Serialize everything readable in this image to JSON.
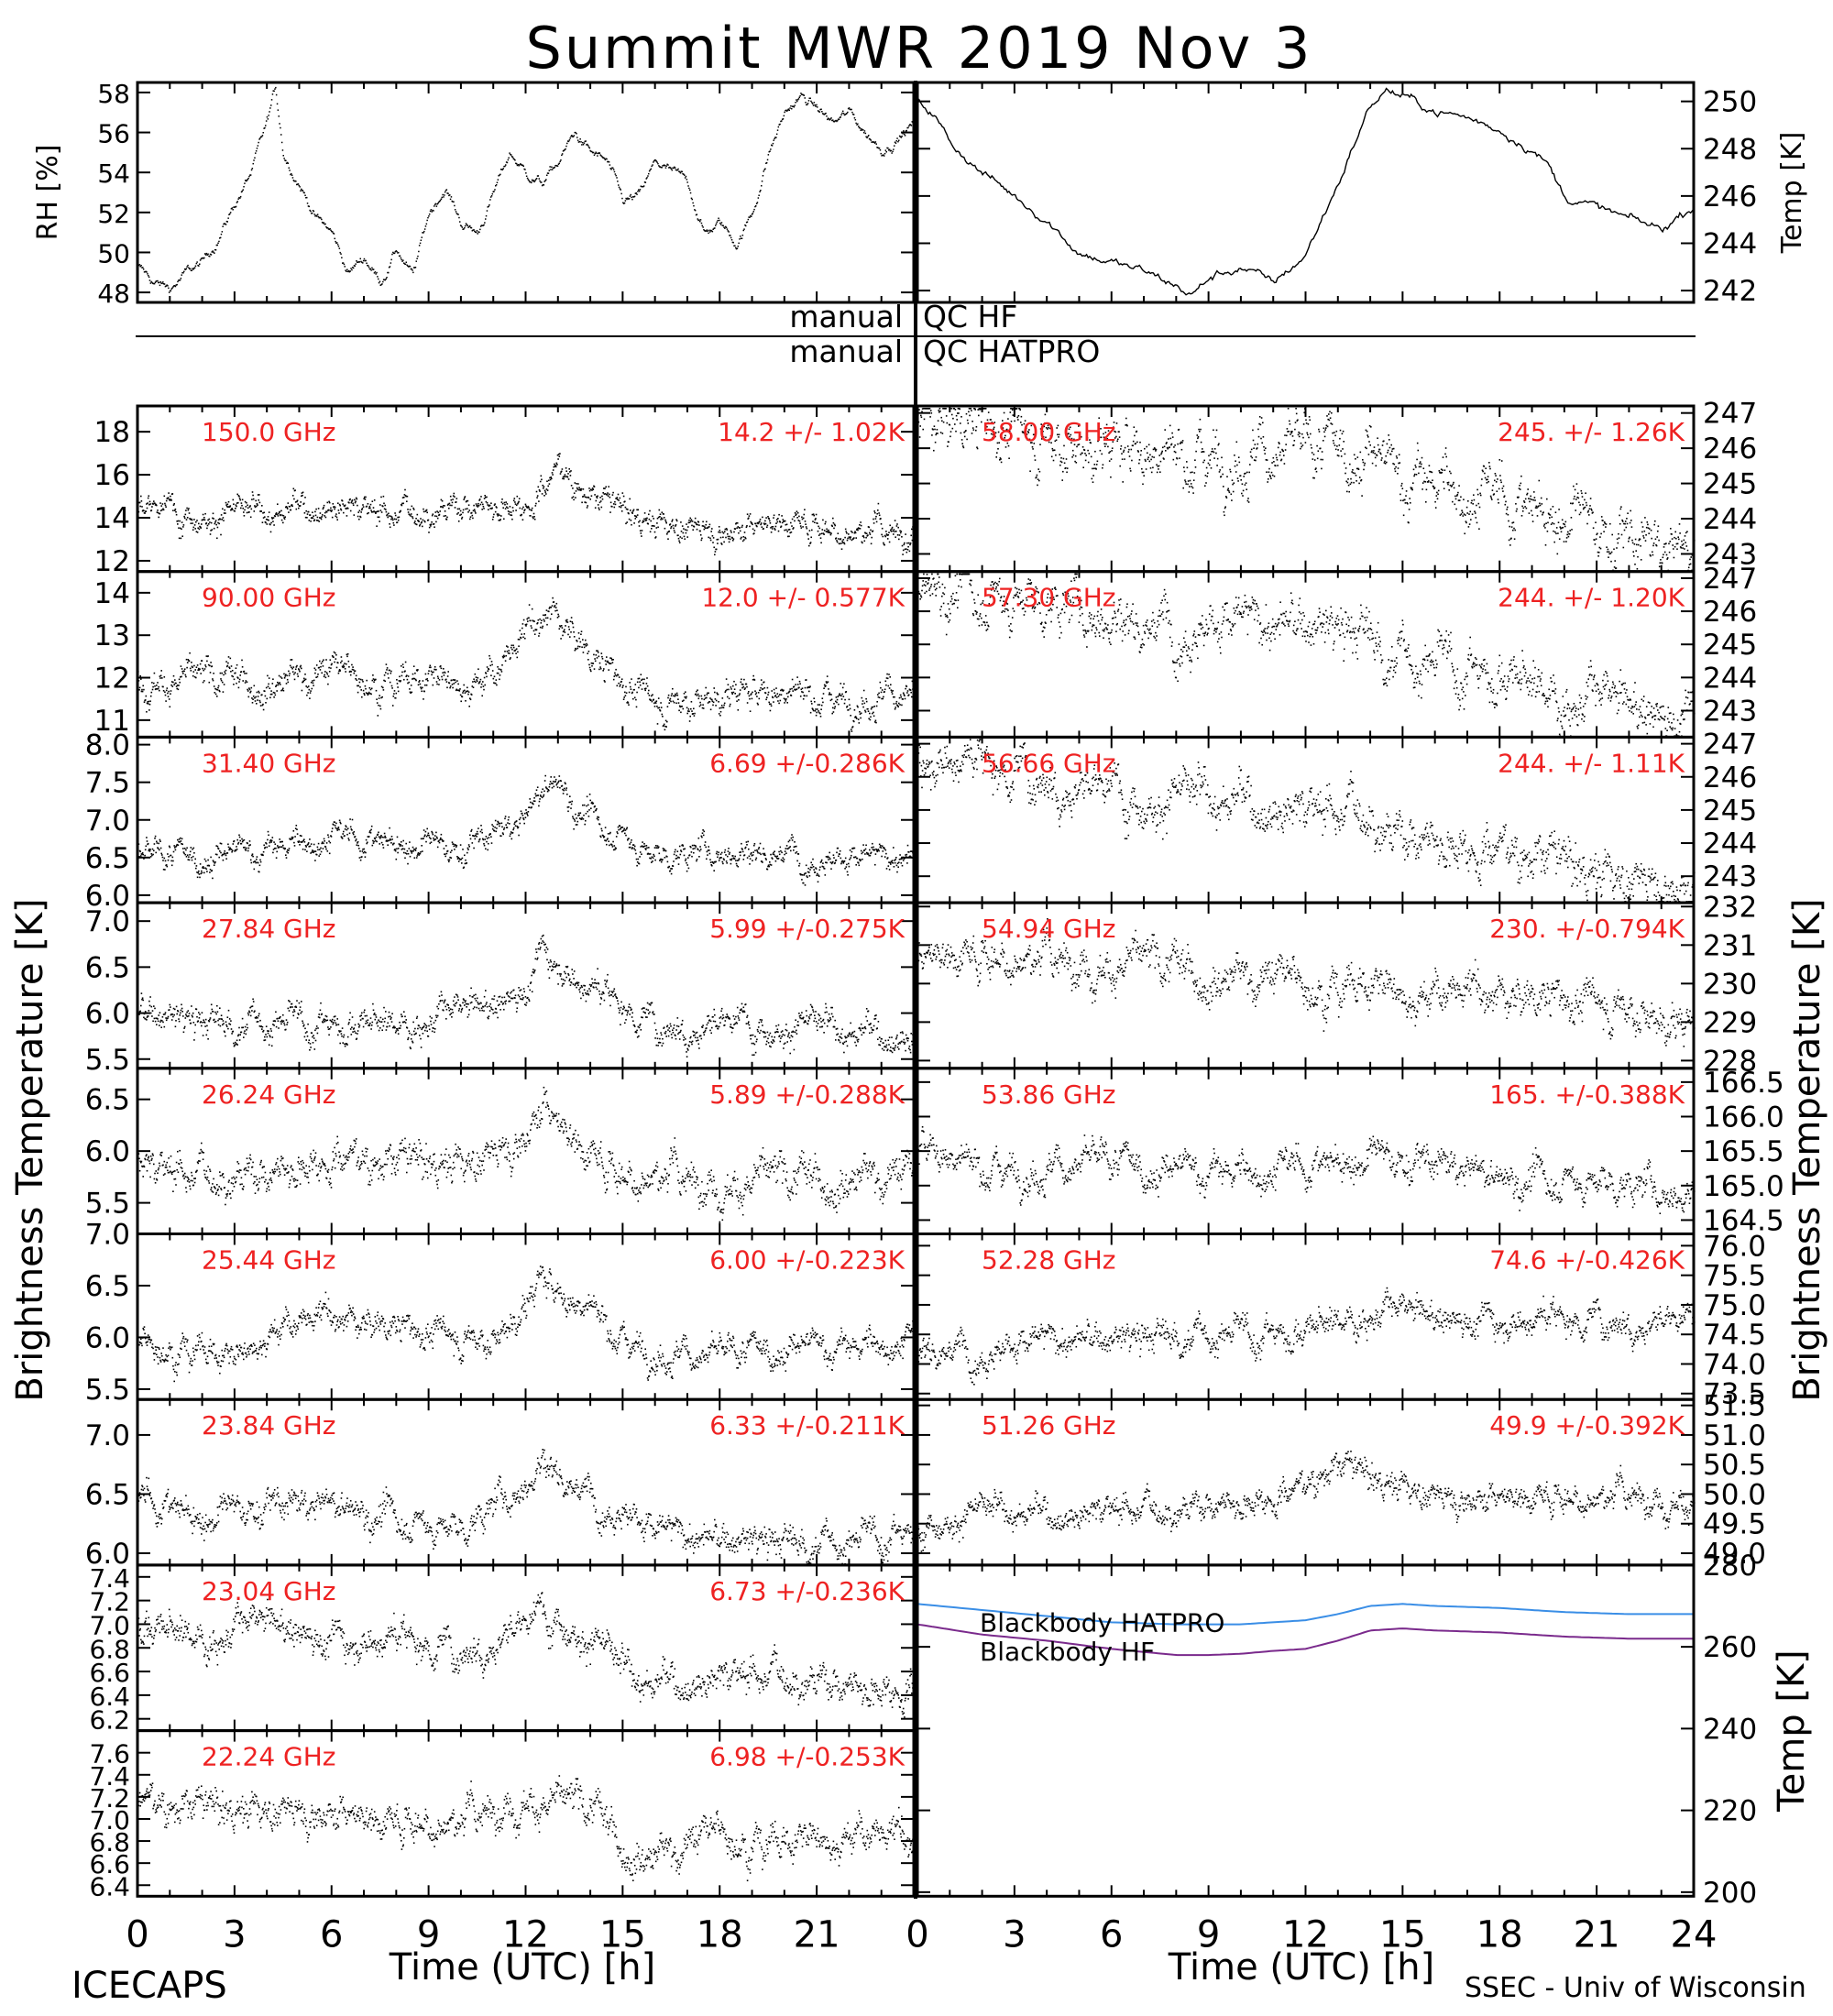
{
  "title": "Summit MWR 2019 Nov  3",
  "footer": {
    "left": "ICECAPS",
    "right": "SSEC - Univ of Wisconsin",
    "xlabel": "Time (UTC) [h]"
  },
  "qc_labels": {
    "manual_1": "manual",
    "qc_1": "QC HF",
    "manual_2": "manual",
    "qc_2": "QC HATPRO"
  },
  "colors": {
    "annotation": "#ee2222",
    "hatpro": "#3a8ee6",
    "hf": "#7a2a8c",
    "data": "#000000"
  },
  "chart_data": [
    {
      "id": "rh",
      "type": "scatter",
      "ylabel": "RH [%]",
      "ylim": [
        47.5,
        58.5
      ],
      "yticks": [
        48,
        50,
        52,
        54,
        56,
        58
      ],
      "x": [
        0,
        0.5,
        1,
        1.5,
        2,
        2.5,
        3,
        3.5,
        4,
        4.25,
        4.5,
        5,
        5.5,
        6,
        6.5,
        7,
        7.5,
        8,
        8.5,
        9,
        9.5,
        10,
        10.5,
        11,
        11.5,
        12,
        12.5,
        13,
        13.5,
        14,
        14.5,
        15,
        15.5,
        16,
        16.5,
        17,
        17.5,
        18,
        18.5,
        19,
        19.5,
        20,
        20.5,
        21,
        21.5,
        22,
        22.5,
        23,
        23.5,
        24
      ],
      "values": [
        49.3,
        48.5,
        48.2,
        49,
        49.5,
        50.8,
        52.5,
        54,
        56.5,
        58.2,
        55,
        53.5,
        51.8,
        51,
        49,
        49.8,
        48.6,
        50.2,
        48.8,
        52,
        53.3,
        51.5,
        51,
        53,
        55,
        54,
        53.5,
        54.5,
        56,
        55,
        54.5,
        52.5,
        52.8,
        54.5,
        54,
        53.5,
        51,
        51.5,
        50.5,
        52,
        55,
        57,
        57.8,
        57.2,
        56.5,
        57,
        56,
        55.2,
        55.8,
        56.5
      ]
    },
    {
      "id": "temp",
      "type": "line",
      "ylabel": "Temp [K]",
      "ylim": [
        241.5,
        250.8
      ],
      "yticks": [
        242,
        244,
        246,
        248,
        250
      ],
      "x": [
        0,
        0.5,
        1,
        2,
        3,
        4,
        5,
        6,
        7,
        8,
        8.5,
        9,
        10,
        11,
        12,
        13,
        13.5,
        14,
        14.5,
        15,
        16,
        17,
        18,
        19,
        19.5,
        20,
        21,
        22,
        23,
        24
      ],
      "values": [
        250,
        249.5,
        248.3,
        247,
        246,
        245,
        243.6,
        243.2,
        242.8,
        242.2,
        241.8,
        242.5,
        243,
        242.3,
        243.5,
        246.5,
        248.2,
        249.8,
        250.5,
        250.2,
        249.6,
        249.3,
        248.8,
        248,
        247.3,
        246,
        245.5,
        245,
        244.6,
        245.6
      ]
    },
    {
      "id": "tb150",
      "type": "scatter",
      "annotation": "150.0 GHz",
      "stat": "14.2 +/-  1.02K",
      "ylim": [
        11.5,
        19.2
      ],
      "yticks": [
        12,
        14,
        16,
        18
      ],
      "x": [
        0,
        2,
        4,
        6,
        8,
        10,
        12,
        12.5,
        13,
        14,
        16,
        18,
        20,
        22,
        24
      ],
      "values": [
        14.5,
        14.3,
        14.2,
        14.8,
        14.3,
        14.6,
        14.8,
        15.5,
        16.5,
        15,
        13.8,
        13.5,
        14,
        13.5,
        13.3
      ],
      "noise": 1.02
    },
    {
      "id": "tb90",
      "type": "scatter",
      "annotation": "90.00 GHz",
      "stat": "12.0 +/- 0.577K",
      "ylim": [
        10.6,
        14.5
      ],
      "yticks": [
        11,
        12,
        13,
        14
      ],
      "x": [
        0,
        2,
        4,
        6,
        8,
        10,
        11,
        12,
        12.7,
        13.3,
        14,
        15,
        16,
        18,
        20,
        22,
        24
      ],
      "values": [
        12,
        11.9,
        12,
        12.2,
        12,
        12,
        12.1,
        13,
        13.6,
        13.2,
        12.5,
        11.9,
        11.4,
        11.6,
        11.7,
        11.6,
        11.7
      ],
      "noise": 0.577
    },
    {
      "id": "tb3140",
      "type": "scatter",
      "annotation": "31.40 GHz",
      "stat": "6.69 +/-0.286K",
      "ylim": [
        5.9,
        8.1
      ],
      "yticks": [
        6.0,
        6.5,
        7.0,
        7.5,
        8.0
      ],
      "x": [
        0,
        2,
        4,
        6,
        8,
        10,
        11,
        12,
        12.5,
        13,
        13.5,
        14,
        15,
        16,
        18,
        20,
        22,
        24
      ],
      "values": [
        6.5,
        6.5,
        6.6,
        6.8,
        6.7,
        6.6,
        6.8,
        7.0,
        7.4,
        7.5,
        7.2,
        7.0,
        6.8,
        6.5,
        6.6,
        6.6,
        6.5,
        6.5
      ],
      "noise": 0.286
    },
    {
      "id": "tb2784",
      "type": "scatter",
      "annotation": "27.84 GHz",
      "stat": "5.99 +/-0.275K",
      "ylim": [
        5.4,
        7.2
      ],
      "yticks": [
        5.5,
        6.0,
        6.5,
        7.0
      ],
      "x": [
        0,
        2,
        4,
        6,
        8,
        10,
        11,
        12,
        12.5,
        13,
        13.5,
        14,
        15,
        16,
        18,
        20,
        22,
        24
      ],
      "values": [
        6.0,
        5.9,
        5.9,
        5.9,
        5.9,
        6.0,
        6.1,
        6.3,
        6.7,
        6.6,
        6.4,
        6.3,
        6.1,
        5.9,
        5.9,
        5.9,
        5.8,
        5.8
      ],
      "noise": 0.275
    },
    {
      "id": "tb2624",
      "type": "scatter",
      "annotation": "26.24 GHz",
      "stat": "5.89 +/-0.288K",
      "ylim": [
        5.2,
        6.8
      ],
      "yticks": [
        5.5,
        6.0,
        6.5
      ],
      "x": [
        0,
        2,
        4,
        6,
        8,
        10,
        11,
        12,
        12.5,
        13,
        14,
        15,
        16,
        18,
        20,
        22,
        24
      ],
      "values": [
        5.9,
        5.8,
        5.8,
        6.0,
        5.9,
        5.9,
        6.0,
        6.2,
        6.5,
        6.3,
        6.0,
        5.8,
        5.8,
        5.7,
        5.7,
        5.8,
        5.8
      ],
      "noise": 0.288
    },
    {
      "id": "tb2544",
      "type": "scatter",
      "annotation": "25.44 GHz",
      "stat": "6.00 +/-0.223K",
      "ylim": [
        5.4,
        7.0
      ],
      "yticks": [
        5.5,
        6.0,
        6.5,
        7.0
      ],
      "x": [
        0,
        2,
        3,
        4,
        6,
        8,
        10,
        11,
        12,
        12.5,
        13,
        14,
        15,
        16,
        18,
        20,
        22,
        24
      ],
      "values": [
        6.0,
        5.9,
        5.8,
        6.1,
        6.2,
        6.1,
        6.0,
        6.0,
        6.3,
        6.6,
        6.4,
        6.3,
        6.0,
        5.9,
        5.8,
        5.9,
        5.9,
        6.0
      ],
      "noise": 0.223
    },
    {
      "id": "tb2384",
      "type": "scatter",
      "annotation": "23.84 GHz",
      "stat": "6.33 +/-0.211K",
      "ylim": [
        5.9,
        7.3
      ],
      "yticks": [
        6.0,
        6.5,
        7.0
      ],
      "x": [
        0,
        2,
        4,
        6,
        8,
        10,
        11,
        12,
        12.5,
        13,
        14,
        15,
        16,
        18,
        20,
        22,
        24
      ],
      "values": [
        6.5,
        6.3,
        6.4,
        6.4,
        6.3,
        6.2,
        6.4,
        6.6,
        6.8,
        6.7,
        6.5,
        6.4,
        6.2,
        6.1,
        6.1,
        6.1,
        6.2
      ],
      "noise": 0.211
    },
    {
      "id": "tb2304",
      "type": "scatter",
      "annotation": "23.04 GHz",
      "stat": "6.73 +/-0.236K",
      "ylim": [
        6.1,
        7.5
      ],
      "yticks": [
        6.2,
        6.4,
        6.6,
        6.8,
        7.0,
        7.2,
        7.4
      ],
      "x": [
        0,
        2,
        4,
        6,
        8,
        10,
        11,
        12,
        12.5,
        13,
        14,
        15,
        16,
        18,
        20,
        22,
        24
      ],
      "values": [
        7.0,
        6.9,
        7.0,
        6.9,
        6.9,
        6.8,
        6.9,
        7.0,
        7.1,
        7.1,
        6.9,
        6.6,
        6.5,
        6.6,
        6.6,
        6.5,
        6.5
      ],
      "noise": 0.236
    },
    {
      "id": "tb2224",
      "type": "scatter",
      "annotation": "22.24 GHz",
      "stat": "6.98 +/-0.253K",
      "ylim": [
        6.3,
        7.8
      ],
      "yticks": [
        6.4,
        6.6,
        6.8,
        7.0,
        7.2,
        7.4,
        7.6
      ],
      "x": [
        0,
        2,
        4,
        6,
        8,
        10,
        11,
        12,
        13,
        14,
        15,
        16,
        18,
        20,
        22,
        24
      ],
      "values": [
        7.2,
        7.1,
        7.1,
        7.1,
        7.0,
        7.0,
        7.1,
        7.2,
        7.1,
        7.1,
        6.8,
        6.7,
        6.9,
        6.8,
        6.9,
        6.8
      ],
      "noise": 0.253
    },
    {
      "id": "tb5800",
      "type": "scatter",
      "annotation": "58.00 GHz",
      "stat": "245. +/- 1.26K",
      "ylim": [
        242.5,
        247.2
      ],
      "yticks": [
        243,
        244,
        245,
        246,
        247
      ],
      "x": [
        0,
        1,
        2,
        4,
        6,
        8,
        10,
        12,
        13,
        14,
        14.5,
        15,
        16,
        18,
        19,
        20,
        21,
        22,
        24
      ],
      "values": [
        246.9,
        246.8,
        246.7,
        246.3,
        246,
        245.9,
        246,
        245.8,
        245.9,
        245.9,
        245.3,
        245.1,
        245,
        244.6,
        244.3,
        244.1,
        243.7,
        243.3,
        242.9
      ],
      "noise": 1.26
    },
    {
      "id": "tb5730",
      "type": "scatter",
      "annotation": "57.30 GHz",
      "stat": "244. +/- 1.20K",
      "ylim": [
        242.2,
        247.2
      ],
      "yticks": [
        242,
        243,
        244,
        245,
        246,
        247
      ],
      "x": [
        0,
        1,
        2,
        4,
        6,
        8,
        10,
        12,
        13,
        14,
        14.5,
        15,
        16,
        18,
        19,
        20,
        21,
        22,
        24
      ],
      "values": [
        246.8,
        246.7,
        246.5,
        246.2,
        245.9,
        245.7,
        245.7,
        245.5,
        245.4,
        245.3,
        244.8,
        244.6,
        244.4,
        244.2,
        243.8,
        243.5,
        243.3,
        243.1,
        242.9
      ],
      "noise": 1.2
    },
    {
      "id": "tb5666",
      "type": "scatter",
      "annotation": "56.66 GHz",
      "stat": "244. +/- 1.11K",
      "ylim": [
        242.2,
        247.2
      ],
      "yticks": [
        242,
        243,
        244,
        245,
        246,
        247
      ],
      "x": [
        0,
        1,
        2,
        4,
        6,
        8,
        10,
        12,
        13,
        14,
        14.5,
        15,
        16,
        18,
        19,
        20,
        21,
        22,
        24
      ],
      "values": [
        246.8,
        246.7,
        246.5,
        246.1,
        245.6,
        245.4,
        245.3,
        245.2,
        245.1,
        245.1,
        244.5,
        244.3,
        244.2,
        244,
        243.7,
        243.4,
        243.2,
        243,
        242.8
      ],
      "noise": 1.11
    },
    {
      "id": "tb5494",
      "type": "scatter",
      "annotation": "54.94 GHz",
      "stat": "230. +/-0.794K",
      "ylim": [
        227.8,
        232.1
      ],
      "yticks": [
        228,
        229,
        230,
        231,
        232
      ],
      "x": [
        0,
        2,
        4,
        6,
        8,
        10,
        12,
        14,
        16,
        18,
        20,
        22,
        24
      ],
      "values": [
        230.9,
        230.8,
        230.7,
        230.5,
        230.4,
        230.3,
        230.1,
        230,
        229.8,
        229.7,
        229.6,
        229.4,
        228.8
      ],
      "noise": 0.794
    },
    {
      "id": "tb5386",
      "type": "scatter",
      "annotation": "53.86 GHz",
      "stat": "165. +/-0.388K",
      "ylim": [
        164.3,
        166.7
      ],
      "yticks": [
        164.0,
        164.5,
        165.0,
        165.5,
        166.0,
        166.5
      ],
      "x": [
        0,
        2,
        4,
        6,
        8,
        10,
        12,
        14,
        16,
        18,
        20,
        22,
        24
      ],
      "values": [
        165.6,
        165.3,
        165.3,
        165.3,
        165.2,
        165.2,
        165.3,
        165.4,
        165.3,
        165.1,
        165.1,
        165,
        164.9
      ],
      "noise": 0.388
    },
    {
      "id": "tb5228",
      "type": "scatter",
      "annotation": "52.28 GHz",
      "stat": "74.6 +/-0.426K",
      "ylim": [
        73.4,
        76.2
      ],
      "yticks": [
        73.5,
        74.0,
        74.5,
        75.0,
        75.5,
        76.0
      ],
      "x": [
        0,
        2,
        4,
        6,
        8,
        10,
        12,
        14,
        16,
        18,
        20,
        22,
        24
      ],
      "values": [
        74.3,
        74.3,
        74.4,
        74.4,
        74.5,
        74.5,
        74.6,
        74.9,
        74.8,
        74.8,
        74.8,
        74.8,
        74.7
      ],
      "noise": 0.426
    },
    {
      "id": "tb5126",
      "type": "scatter",
      "annotation": "51.26 GHz",
      "stat": "49.9 +/-0.392K",
      "ylim": [
        48.8,
        51.6
      ],
      "yticks": [
        49.0,
        49.5,
        50.0,
        50.5,
        51.0,
        51.5
      ],
      "x": [
        0,
        2,
        4,
        6,
        8,
        10,
        12,
        12.5,
        13,
        14,
        16,
        18,
        20,
        22,
        24
      ],
      "values": [
        49.6,
        49.7,
        49.7,
        49.8,
        49.8,
        49.9,
        50.2,
        50.4,
        50.5,
        50.3,
        50,
        50,
        50,
        50,
        49.9
      ],
      "noise": 0.392
    },
    {
      "id": "blackbody",
      "type": "line",
      "ylabel": "Temp [K]",
      "ylim": [
        199,
        280
      ],
      "yticks": [
        200,
        220,
        240,
        260,
        280
      ],
      "series": [
        {
          "name": "Blackbody HATPRO",
          "x": [
            0,
            2,
            4,
            6,
            8,
            9,
            10,
            11,
            12,
            13,
            14,
            15,
            16,
            18,
            20,
            22,
            24
          ],
          "values": [
            270.5,
            269,
            267.5,
            266,
            265.5,
            265.5,
            265.5,
            266,
            266.5,
            268,
            270,
            270.5,
            270,
            269.5,
            268.5,
            268,
            268
          ]
        },
        {
          "name": "Blackbody HF",
          "x": [
            0,
            2,
            4,
            6,
            8,
            9,
            10,
            11,
            12,
            13,
            14,
            15,
            16,
            18,
            20,
            22,
            24
          ],
          "values": [
            265.5,
            263,
            261.5,
            259.5,
            258,
            258,
            258.3,
            259,
            259.5,
            261.5,
            264,
            264.5,
            264,
            263.5,
            262.5,
            262,
            262
          ]
        }
      ]
    }
  ],
  "shared_axis": {
    "xlim": [
      0,
      24
    ],
    "xticks": [
      0,
      3,
      6,
      9,
      12,
      15,
      18,
      21,
      24
    ],
    "ylabel": "Brightness Temperature [K]"
  }
}
